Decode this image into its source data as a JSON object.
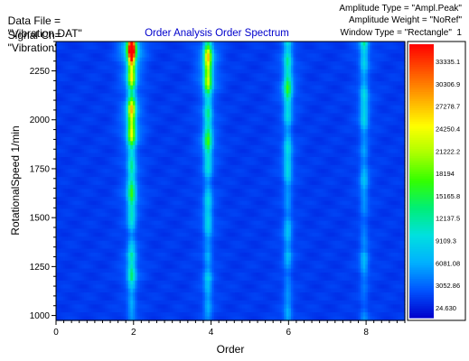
{
  "header": {
    "data_file_label": "Data File =",
    "data_file_value": "\"Vibration.DAT\"",
    "signal_label": "Signal Ch=",
    "signal_value": "\"Vibration\"",
    "amplitude_type": "Amplitude Type = \"Ampl.Peak\"",
    "amplitude_weight": "Amplitude Weight = \"NoRef\"",
    "window_type": "Window Type = \"Rectangle\"  1"
  },
  "chart_data": {
    "type": "heatmap",
    "title": "Order Analysis Order Spectrum",
    "xlabel": "Order",
    "ylabel": "RotationalSpeed  1/min",
    "xlim": [
      0,
      9
    ],
    "ylim": [
      975,
      2400
    ],
    "x_ticks": [
      "0",
      "2",
      "4",
      "6",
      "8"
    ],
    "y_ticks": [
      "1000",
      "1250",
      "1500",
      "1750",
      "2000",
      "2250"
    ],
    "colorbar_labels": [
      "33335.1",
      "30306.9",
      "27278.7",
      "24250.4",
      "21222.2",
      "18194",
      "15165.8",
      "12137.5",
      "9109.3",
      "6081.08",
      "3052.86",
      "24.630"
    ],
    "colorbar_range": [
      24.63,
      36363.3
    ],
    "order_lines": [
      {
        "order": 1.95,
        "peak": 36000,
        "base": 6500
      },
      {
        "order": 3.92,
        "peak": 24000,
        "base": 4500
      },
      {
        "order": 5.98,
        "peak": 15000,
        "base": 3800
      },
      {
        "order": 7.95,
        "peak": 10000,
        "base": 3000
      }
    ],
    "background_level": 2000,
    "grid": false
  },
  "colors": {
    "title": "#0000cc",
    "colormap": [
      "#0000cc",
      "#0055ff",
      "#00b0ff",
      "#00e0e0",
      "#00ee77",
      "#33ff00",
      "#aaff00",
      "#ffff00",
      "#ffaa00",
      "#ff5500",
      "#ff0000"
    ]
  }
}
